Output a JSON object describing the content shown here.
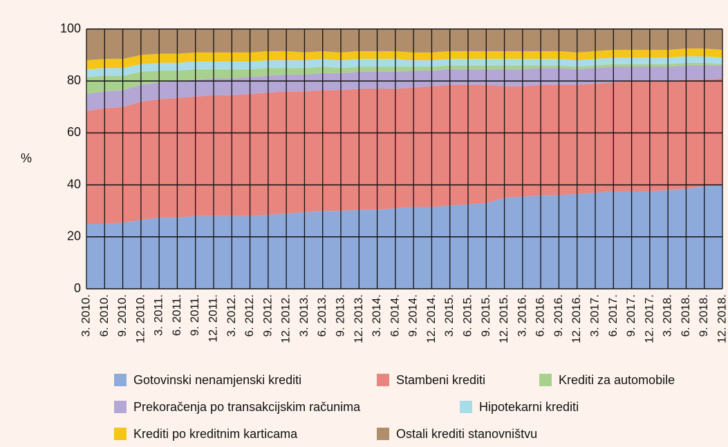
{
  "chart_data": {
    "type": "stacked_area",
    "y_label": "%",
    "categories": [
      "3. 2010.",
      "6. 2010.",
      "9. 2010.",
      "12. 2010.",
      "3. 2011.",
      "6. 2011.",
      "9. 2011.",
      "12. 2011.",
      "3. 2012.",
      "6. 2012.",
      "9. 2012.",
      "12. 2012.",
      "3. 2013.",
      "6. 2013.",
      "9. 2013.",
      "12. 2013.",
      "3. 2014.",
      "6. 2014.",
      "9. 2014.",
      "12. 2014.",
      "3. 2015.",
      "6. 2015.",
      "9. 2015.",
      "12. 2015.",
      "3. 2016.",
      "6. 2016.",
      "9. 2016.",
      "12. 2016.",
      "3. 2017.",
      "6. 2017.",
      "9. 2017.",
      "12. 2017.",
      "3. 2018.",
      "6. 2018.",
      "9. 2018.",
      "12. 2018."
    ],
    "series": [
      {
        "name": "Gotovinski nenamjenski krediti",
        "color": "#8eaadb",
        "values": [
          25,
          25,
          25.5,
          26.5,
          27.5,
          27.5,
          28,
          28,
          28,
          28,
          28.5,
          29,
          29.5,
          30,
          30,
          30.5,
          30.5,
          31,
          31.5,
          31.5,
          32,
          32.5,
          33,
          35,
          35.5,
          36,
          36,
          36.5,
          37,
          37.5,
          37.5,
          37.5,
          38,
          38.5,
          39.5,
          40
        ]
      },
      {
        "name": "Stambeni krediti",
        "color": "#e8857e",
        "values": [
          43.5,
          44.5,
          44.5,
          45.5,
          45.5,
          46,
          46,
          46.5,
          46.5,
          47,
          47,
          47,
          46.5,
          46.5,
          46.5,
          46.5,
          46.5,
          46,
          46,
          46.5,
          46.5,
          46,
          45.5,
          43,
          42.5,
          42.5,
          42.5,
          42,
          42,
          42,
          42.5,
          42.5,
          42,
          42,
          41,
          41
        ]
      },
      {
        "name": "Prekoračenja po transakcijskim računima",
        "color": "#b4a7d6",
        "values": [
          6.5,
          6.5,
          6.5,
          6.5,
          6.5,
          6.5,
          6.5,
          6.5,
          6.5,
          6.5,
          6.5,
          6.5,
          6.5,
          6.5,
          6.5,
          6.5,
          6.5,
          6.5,
          6.5,
          6,
          6,
          6,
          6,
          6.5,
          6.5,
          6.5,
          6.5,
          6,
          6,
          6,
          5.5,
          5.5,
          5.5,
          5.5,
          5.5,
          5
        ]
      },
      {
        "name": "Krediti za automobile",
        "color": "#a9d18e",
        "values": [
          6.5,
          6,
          5.5,
          5,
          4.5,
          4,
          4,
          3.5,
          3.5,
          3,
          3,
          2.5,
          2.5,
          2.5,
          2,
          2,
          2,
          2,
          1.5,
          1.5,
          1.5,
          1.5,
          1.5,
          1.5,
          1.5,
          1,
          1,
          1,
          1,
          1,
          1,
          1,
          1,
          1,
          1,
          0.5
        ]
      },
      {
        "name": "Hipotekarni krediti",
        "color": "#a8dce8",
        "values": [
          3,
          3,
          3,
          3,
          3,
          3,
          3,
          3,
          3,
          3,
          3,
          3,
          3,
          3,
          3,
          3,
          3,
          3,
          2.5,
          2.5,
          2.5,
          2.5,
          2.5,
          2.5,
          2.5,
          2.5,
          2.5,
          2.5,
          2.5,
          2.5,
          2.5,
          2.5,
          2.5,
          2.5,
          2.5,
          2.5
        ]
      },
      {
        "name": "Krediti po kreditnim karticama",
        "color": "#f5c518",
        "values": [
          3.5,
          3.5,
          3.5,
          3.5,
          3.5,
          3.5,
          3.5,
          3.5,
          3.5,
          3.5,
          3.5,
          3.5,
          3,
          3,
          3,
          3,
          3,
          3,
          3,
          3,
          3,
          3,
          3,
          3,
          3,
          3,
          3,
          3,
          3,
          3,
          3,
          3,
          3,
          3,
          3,
          3
        ]
      },
      {
        "name": "Ostali krediti stanovništvu",
        "color": "#b08d6b",
        "values": [
          12,
          11.5,
          11.5,
          10,
          9.5,
          9.5,
          9,
          9,
          9,
          9,
          8.5,
          8.5,
          9,
          8.5,
          9,
          8.5,
          8.5,
          8.5,
          9,
          9,
          8.5,
          8.5,
          8.5,
          8.5,
          8.5,
          8.5,
          8.5,
          9,
          8.5,
          8,
          8,
          8,
          8,
          7.5,
          7.5,
          8
        ]
      }
    ],
    "ylim": [
      0,
      100
    ],
    "yticks": [
      0,
      20,
      40,
      60,
      80,
      100
    ],
    "grid": true
  }
}
